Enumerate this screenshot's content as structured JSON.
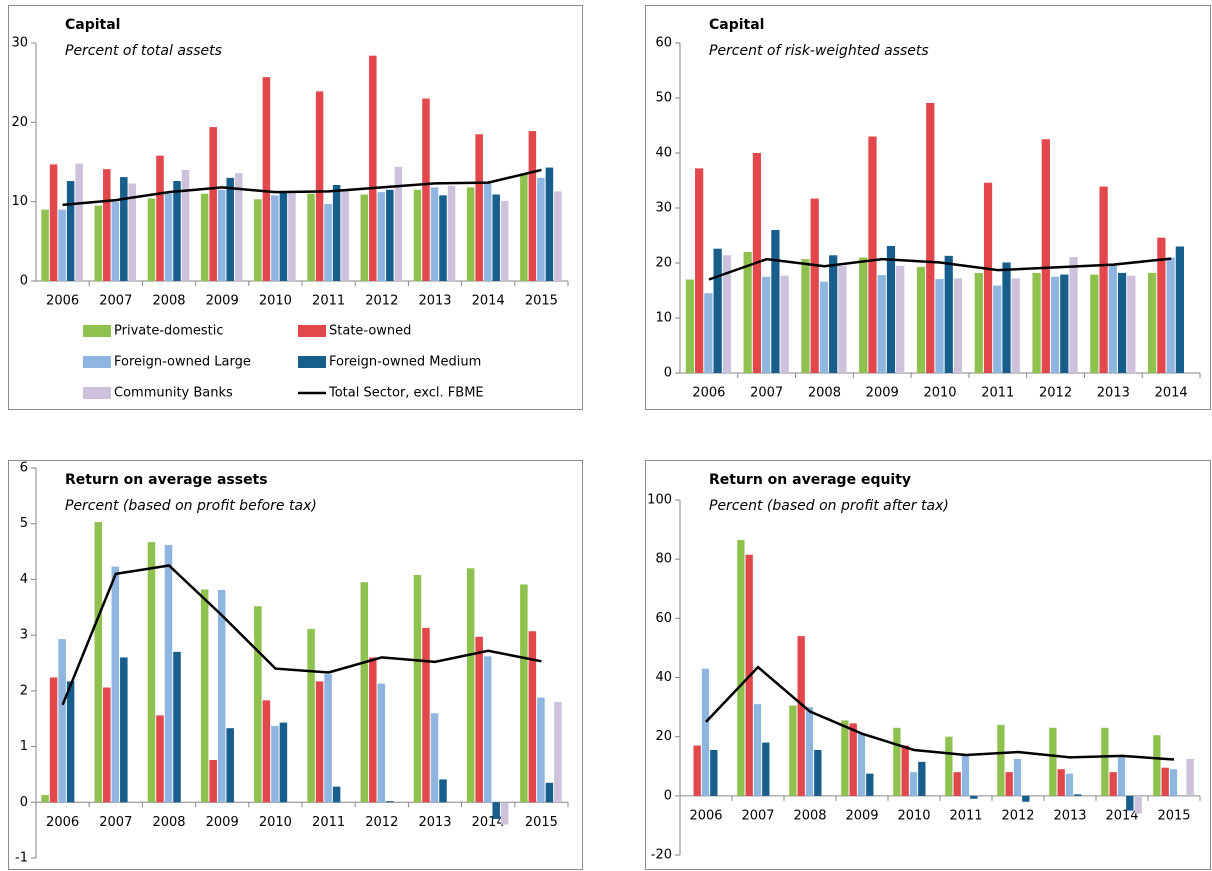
{
  "chart_data": [
    {
      "type": "bar",
      "title": "Capital",
      "subtitle": "Percent of total assets",
      "legend": true,
      "categories": [
        "2006",
        "2007",
        "2008",
        "2009",
        "2010",
        "2011",
        "2012",
        "2013",
        "2014",
        "2015"
      ],
      "ylim": [
        0,
        30
      ],
      "yticks": [
        0,
        10,
        20,
        30
      ],
      "series": [
        {
          "name": "Private-domestic",
          "color": "#8fc14f",
          "values": [
            9.0,
            9.5,
            10.4,
            11.0,
            10.3,
            11.0,
            10.9,
            11.5,
            11.8,
            13.5
          ]
        },
        {
          "name": "State-owned",
          "color": "#e2474b",
          "values": [
            14.7,
            14.1,
            15.8,
            19.4,
            25.7,
            23.9,
            28.4,
            23.0,
            18.5,
            18.9
          ]
        },
        {
          "name": "Foreign-owned Large",
          "color": "#8fb6e0",
          "values": [
            9.0,
            10.0,
            11.0,
            11.5,
            10.8,
            9.7,
            11.2,
            11.8,
            12.5,
            13.0
          ]
        },
        {
          "name": "Foreign-owned Medium",
          "color": "#175e8c",
          "values": [
            12.6,
            13.1,
            12.6,
            13.0,
            11.3,
            12.1,
            11.5,
            10.8,
            10.9,
            14.3
          ]
        },
        {
          "name": "Community Banks",
          "color": "#cdc1dc",
          "values": [
            14.8,
            12.3,
            14.0,
            13.6,
            11.3,
            11.5,
            14.4,
            12.0,
            10.1,
            11.3
          ]
        },
        {
          "name": "Total Sector, excl. FBME",
          "type": "line",
          "color": "#000000",
          "values": [
            9.6,
            10.2,
            11.2,
            11.8,
            11.2,
            11.3,
            11.8,
            12.3,
            12.4,
            14.0
          ]
        }
      ]
    },
    {
      "type": "bar",
      "title": "Capital",
      "subtitle": "Percent of risk-weighted assets",
      "legend": false,
      "categories": [
        "2006",
        "2007",
        "2008",
        "2009",
        "2010",
        "2011",
        "2012",
        "2013",
        "2014"
      ],
      "ylim": [
        0,
        60
      ],
      "yticks": [
        0,
        10,
        20,
        30,
        40,
        50,
        60
      ],
      "series": [
        {
          "color": "#8fc14f",
          "values": [
            17,
            22,
            20.7,
            21,
            19.3,
            18.2,
            18.2,
            17.9,
            18.2
          ]
        },
        {
          "color": "#e2474b",
          "values": [
            37.2,
            40,
            31.7,
            43,
            49.1,
            34.6,
            42.5,
            33.9,
            24.6
          ]
        },
        {
          "color": "#8fb6e0",
          "values": [
            14.5,
            17.5,
            16.6,
            17.8,
            17.1,
            15.9,
            17.5,
            19.8,
            21
          ]
        },
        {
          "color": "#175e8c",
          "values": [
            22.6,
            26,
            21.4,
            23.1,
            21.3,
            20.1,
            17.9,
            18.2,
            23
          ]
        },
        {
          "color": "#cdc1dc",
          "values": [
            21.4,
            17.7,
            19.5,
            19.5,
            17.2,
            17.2,
            21.1,
            17.7,
            null
          ]
        },
        {
          "type": "line",
          "color": "#000000",
          "values": [
            17,
            20.7,
            19.4,
            20.7,
            20.1,
            18.7,
            19.2,
            19.7,
            20.8
          ]
        }
      ]
    },
    {
      "type": "bar",
      "title": "Return on average assets",
      "subtitle": "Percent (based on profit before tax)",
      "legend": false,
      "categories": [
        "2006",
        "2007",
        "2008",
        "2009",
        "2010",
        "2011",
        "2012",
        "2013",
        "2014",
        "2015"
      ],
      "ylim": [
        -1,
        6
      ],
      "yticks": [
        -1,
        0,
        1,
        2,
        3,
        4,
        5,
        6
      ],
      "series": [
        {
          "color": "#8fc14f",
          "values": [
            0.13,
            5.03,
            4.67,
            3.82,
            3.52,
            3.11,
            3.95,
            4.08,
            4.2,
            3.91
          ]
        },
        {
          "color": "#e2474b",
          "values": [
            2.24,
            2.06,
            1.56,
            0.76,
            1.83,
            2.17,
            2.6,
            3.13,
            2.97,
            3.07
          ]
        },
        {
          "color": "#8fb6e0",
          "values": [
            2.93,
            4.23,
            4.62,
            3.81,
            1.37,
            2.3,
            2.13,
            1.6,
            2.62,
            1.88
          ]
        },
        {
          "color": "#175e8c",
          "values": [
            2.17,
            2.6,
            2.7,
            1.33,
            1.43,
            0.28,
            0.02,
            0.41,
            -0.3,
            0.35
          ]
        },
        {
          "color": "#cdc1dc",
          "values": [
            null,
            null,
            null,
            null,
            null,
            null,
            null,
            null,
            -0.4,
            1.8
          ]
        },
        {
          "type": "line",
          "color": "#000000",
          "values": [
            1.75,
            4.1,
            4.25,
            3.35,
            2.4,
            2.33,
            2.6,
            2.52,
            2.72,
            2.53
          ]
        }
      ]
    },
    {
      "type": "bar",
      "title": "Return on average equity",
      "subtitle": "Percent (based on profit after tax)",
      "legend": false,
      "categories": [
        "2006",
        "2007",
        "2008",
        "2009",
        "2010",
        "2011",
        "2012",
        "2013",
        "2014",
        "2015"
      ],
      "ylim": [
        -20,
        100
      ],
      "yticks": [
        -20,
        0,
        20,
        40,
        60,
        80,
        100
      ],
      "series": [
        {
          "color": "#8fc14f",
          "values": [
            null,
            86.5,
            30.5,
            25.5,
            23,
            20,
            24,
            23,
            23,
            20.5
          ]
        },
        {
          "color": "#e2474b",
          "values": [
            17,
            81.5,
            54,
            24.5,
            17,
            8,
            8,
            9,
            8,
            9.5
          ]
        },
        {
          "color": "#8fb6e0",
          "values": [
            43,
            31,
            30,
            21,
            8,
            14,
            12.5,
            7.5,
            13,
            9
          ]
        },
        {
          "color": "#175e8c",
          "values": [
            15.5,
            18,
            15.5,
            7.5,
            11.5,
            -1,
            -2,
            0.5,
            -5,
            null
          ]
        },
        {
          "color": "#cdc1dc",
          "values": [
            null,
            null,
            null,
            null,
            null,
            null,
            null,
            null,
            -6,
            12.5
          ]
        },
        {
          "type": "line",
          "color": "#000000",
          "values": [
            25,
            43.5,
            28.5,
            21,
            15.5,
            13.8,
            14.8,
            13,
            13.5,
            12.3
          ]
        }
      ]
    }
  ]
}
